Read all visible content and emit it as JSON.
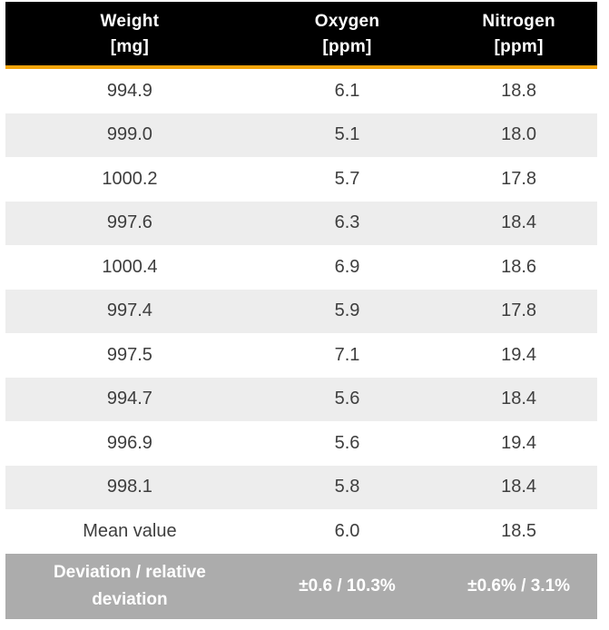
{
  "table": {
    "columns": [
      {
        "label": "Weight",
        "unit": "[mg]"
      },
      {
        "label": "Oxygen",
        "unit": "[ppm]"
      },
      {
        "label": "Nitrogen",
        "unit": "[ppm]"
      }
    ],
    "rows": [
      {
        "weight": "994.9",
        "oxygen": "6.1",
        "nitrogen": "18.8"
      },
      {
        "weight": "999.0",
        "oxygen": "5.1",
        "nitrogen": "18.0"
      },
      {
        "weight": "1000.2",
        "oxygen": "5.7",
        "nitrogen": "17.8"
      },
      {
        "weight": "997.6",
        "oxygen": "6.3",
        "nitrogen": "18.4"
      },
      {
        "weight": "1000.4",
        "oxygen": "6.9",
        "nitrogen": "18.6"
      },
      {
        "weight": "997.4",
        "oxygen": "5.9",
        "nitrogen": "17.8"
      },
      {
        "weight": "997.5",
        "oxygen": "7.1",
        "nitrogen": "19.4"
      },
      {
        "weight": "994.7",
        "oxygen": "5.6",
        "nitrogen": "18.4"
      },
      {
        "weight": "996.9",
        "oxygen": "5.6",
        "nitrogen": "19.4"
      },
      {
        "weight": "998.1",
        "oxygen": "5.8",
        "nitrogen": "18.4"
      },
      {
        "weight": "Mean value",
        "oxygen": "6.0",
        "nitrogen": "18.5"
      }
    ],
    "footer": {
      "label": "Deviation / relative deviation",
      "oxygen": "±0.6 / 10.3%",
      "nitrogen": "±0.6% / 3.1%"
    }
  },
  "colors": {
    "header_bg": "#000000",
    "accent_rule": "#F5A40B",
    "row_alt_bg": "#EDEDED",
    "footer_bg": "#ACACAC",
    "body_text": "#3E3E3E",
    "header_text": "#FFFFFF"
  },
  "chart_data": {
    "type": "table",
    "title": "",
    "categories": [
      "Weight [mg]",
      "Oxygen [ppm]",
      "Nitrogen [ppm]"
    ],
    "series": [
      {
        "name": "Weight [mg]",
        "values": [
          994.9,
          999.0,
          1000.2,
          997.6,
          1000.4,
          997.4,
          997.5,
          994.7,
          996.9,
          998.1
        ]
      },
      {
        "name": "Oxygen [ppm]",
        "values": [
          6.1,
          5.1,
          5.7,
          6.3,
          6.9,
          5.9,
          7.1,
          5.6,
          5.6,
          5.8
        ],
        "mean": 6.0,
        "deviation": "±0.6 / 10.3%"
      },
      {
        "name": "Nitrogen [ppm]",
        "values": [
          18.8,
          18.0,
          17.8,
          18.4,
          18.6,
          17.8,
          19.4,
          18.4,
          19.4,
          18.4
        ],
        "mean": 18.5,
        "deviation": "±0.6% / 3.1%"
      }
    ]
  }
}
